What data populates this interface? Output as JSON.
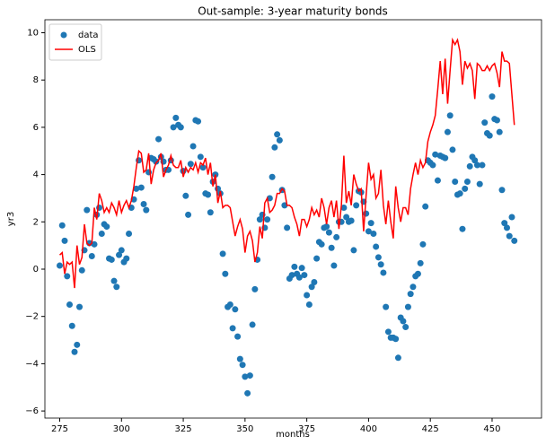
{
  "chart_data": {
    "type": "scatter",
    "title": "Out-sample: 3-year maturity bonds",
    "x_label": "months",
    "y_label": "yr3",
    "xlim": [
      269,
      470
    ],
    "ylim": [
      -6.3,
      10.55
    ],
    "xticks": [
      275,
      300,
      325,
      350,
      375,
      400,
      425,
      450
    ],
    "yticks": [
      {
        "value": -6,
        "label": "−6"
      },
      {
        "value": -4,
        "label": "−4"
      },
      {
        "value": -2,
        "label": "−2"
      },
      0,
      2,
      4,
      6,
      8,
      10
    ],
    "legend": "upper left",
    "x": [
      275,
      276,
      277,
      278,
      279,
      280,
      281,
      282,
      283,
      284,
      285,
      286,
      287,
      288,
      289,
      290,
      291,
      292,
      293,
      294,
      295,
      296,
      297,
      298,
      299,
      300,
      301,
      302,
      303,
      304,
      305,
      306,
      307,
      308,
      309,
      310,
      311,
      312,
      313,
      314,
      315,
      316,
      317,
      318,
      319,
      320,
      321,
      322,
      323,
      324,
      325,
      326,
      327,
      328,
      329,
      330,
      331,
      332,
      333,
      334,
      335,
      336,
      337,
      338,
      339,
      340,
      341,
      342,
      343,
      344,
      345,
      346,
      347,
      348,
      349,
      350,
      351,
      352,
      353,
      354,
      355,
      356,
      357,
      358,
      359,
      360,
      361,
      362,
      363,
      364,
      365,
      366,
      367,
      368,
      369,
      370,
      371,
      372,
      373,
      374,
      375,
      376,
      377,
      378,
      379,
      380,
      381,
      382,
      383,
      384,
      385,
      386,
      387,
      388,
      389,
      390,
      391,
      392,
      393,
      394,
      395,
      396,
      397,
      398,
      399,
      400,
      401,
      402,
      403,
      404,
      405,
      406,
      407,
      408,
      409,
      410,
      411,
      412,
      413,
      414,
      415,
      416,
      417,
      418,
      419,
      420,
      421,
      422,
      423,
      424,
      425,
      426,
      427,
      428,
      429,
      430,
      431,
      432,
      433,
      434,
      435,
      436,
      437,
      438,
      439,
      440,
      441,
      442,
      443,
      444,
      445,
      446,
      447,
      448,
      449,
      450,
      451,
      452,
      453,
      454,
      455,
      456,
      457,
      458,
      459
    ],
    "series": [
      {
        "name": "data",
        "kind": "points",
        "color": "#1f77b4",
        "values": [
          0.15,
          1.85,
          1.2,
          -0.3,
          -1.5,
          -2.4,
          -3.5,
          -3.2,
          -1.6,
          -0.05,
          0.8,
          2.5,
          1.1,
          0.55,
          1.05,
          2.3,
          2.6,
          1.5,
          1.9,
          1.8,
          0.45,
          0.4,
          -0.5,
          -0.75,
          0.6,
          0.8,
          0.3,
          0.45,
          1.5,
          2.6,
          2.95,
          3.4,
          4.6,
          3.45,
          2.75,
          2.5,
          4.1,
          4.7,
          4.65,
          4.55,
          5.5,
          4.75,
          4.55,
          4.2,
          4.2,
          4.6,
          6.0,
          6.4,
          6.1,
          6.0,
          4.15,
          3.1,
          2.3,
          4.45,
          5.2,
          6.3,
          6.25,
          4.75,
          4.3,
          3.2,
          3.15,
          2.4,
          3.7,
          4.0,
          3.4,
          3.2,
          0.65,
          -0.2,
          -1.6,
          -1.5,
          -2.5,
          -1.7,
          -2.85,
          -3.8,
          -4.05,
          -4.55,
          -5.25,
          -4.5,
          -2.35,
          -0.85,
          0.4,
          2.1,
          2.3,
          1.75,
          2.1,
          3.0,
          3.9,
          5.15,
          5.7,
          5.45,
          3.35,
          2.7,
          1.75,
          -0.4,
          -0.25,
          0.1,
          -0.2,
          -0.35,
          0.05,
          -0.25,
          -1.1,
          -1.5,
          -0.75,
          -0.55,
          0.45,
          1.15,
          1.05,
          1.75,
          1.8,
          1.55,
          0.9,
          0.15,
          1.35,
          2.0,
          2.0,
          2.6,
          2.2,
          2.0,
          2.05,
          0.8,
          2.7,
          3.3,
          3.25,
          2.85,
          2.35,
          1.6,
          1.95,
          1.5,
          0.95,
          0.5,
          0.2,
          -0.15,
          -1.6,
          -2.65,
          -2.9,
          -2.9,
          -2.95,
          -3.75,
          -2.05,
          -2.2,
          -2.45,
          -1.6,
          -1.05,
          -0.75,
          -0.3,
          -0.2,
          0.25,
          1.05,
          2.65,
          4.6,
          4.5,
          4.4,
          4.85,
          3.75,
          4.8,
          4.75,
          4.7,
          5.8,
          6.5,
          5.05,
          3.7,
          3.15,
          3.2,
          1.7,
          3.4,
          3.7,
          4.35,
          4.75,
          4.6,
          4.4,
          3.6,
          4.4,
          6.2,
          5.75,
          5.65,
          7.3,
          6.35,
          6.3,
          5.8,
          3.35,
          1.95,
          1.75,
          1.4,
          2.2,
          1.2
        ]
      },
      {
        "name": "OLS",
        "kind": "line",
        "color": "#ff0000",
        "values": [
          0.6,
          0.7,
          -0.2,
          0.3,
          0.2,
          0.3,
          -0.8,
          1.0,
          0.2,
          0.5,
          1.9,
          1.1,
          1.0,
          1.1,
          2.6,
          2.1,
          3.2,
          2.9,
          2.4,
          2.6,
          2.4,
          2.8,
          2.6,
          2.3,
          2.9,
          2.4,
          2.7,
          2.9,
          2.6,
          2.9,
          3.5,
          4.3,
          5.0,
          4.9,
          4.1,
          4.2,
          4.9,
          3.6,
          4.2,
          4.5,
          4.6,
          4.9,
          3.9,
          4.2,
          4.4,
          4.8,
          4.4,
          4.3,
          4.3,
          4.6,
          3.9,
          4.3,
          4.1,
          4.3,
          4.2,
          4.5,
          4.1,
          4.5,
          4.4,
          4.7,
          4.0,
          4.5,
          3.5,
          4.0,
          2.8,
          3.3,
          2.6,
          2.7,
          2.7,
          2.6,
          2.0,
          1.4,
          1.8,
          2.1,
          1.7,
          0.7,
          1.4,
          1.6,
          1.2,
          0.3,
          0.7,
          1.8,
          1.3,
          2.8,
          3.0,
          2.4,
          2.5,
          2.7,
          3.2,
          3.2,
          3.4,
          3.3,
          2.7,
          2.7,
          2.6,
          2.2,
          1.9,
          1.4,
          2.1,
          2.1,
          1.8,
          2.1,
          2.6,
          2.3,
          2.5,
          2.2,
          3.0,
          2.6,
          1.9,
          2.6,
          2.9,
          2.2,
          2.9,
          1.7,
          2.7,
          4.8,
          2.8,
          3.3,
          2.7,
          4.0,
          3.6,
          3.3,
          3.4,
          1.6,
          3.1,
          4.5,
          3.8,
          4.0,
          3.0,
          3.2,
          4.2,
          2.7,
          1.9,
          2.9,
          2.0,
          1.3,
          3.5,
          2.6,
          2.0,
          2.6,
          2.6,
          2.3,
          3.4,
          4.0,
          4.5,
          4.0,
          4.6,
          4.3,
          4.5,
          5.4,
          5.8,
          6.1,
          6.5,
          7.6,
          8.8,
          7.4,
          8.9,
          7.0,
          8.4,
          9.7,
          9.5,
          9.7,
          9.2,
          7.8,
          8.8,
          8.5,
          8.7,
          8.4,
          7.2,
          8.7,
          8.6,
          8.4,
          8.4,
          8.6,
          8.4,
          8.6,
          8.7,
          8.3,
          7.7,
          9.2,
          8.8,
          8.8,
          8.7,
          7.4,
          6.1
        ]
      }
    ]
  }
}
